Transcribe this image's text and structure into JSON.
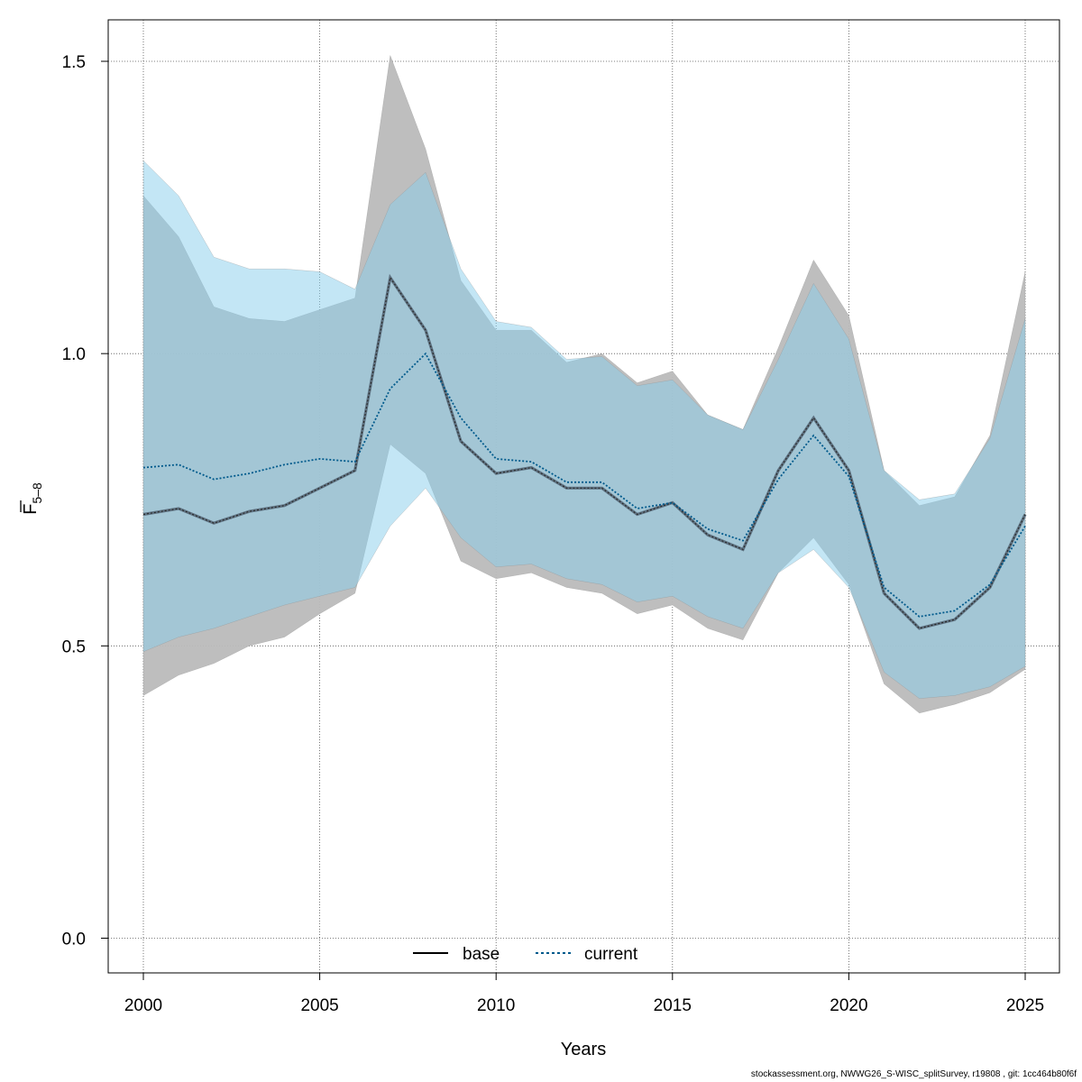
{
  "footer_text": "stockassessment.org, NWWG26_S-WISC_splitSurvey, r19808 , git: 1cc464b80f6f",
  "chart_data": {
    "type": "line",
    "xlabel": "Years",
    "ylabel_main": "F",
    "ylabel_sub": "5–8",
    "xlim": [
      1999,
      2026
    ],
    "ylim": [
      -0.06,
      1.58
    ],
    "grid": true,
    "legend_position": "bottom",
    "x_ticks": [
      2000,
      2005,
      2010,
      2015,
      2020,
      2025
    ],
    "y_ticks": [
      0.0,
      0.5,
      1.0,
      1.5
    ],
    "y_tick_labels": [
      "0.0",
      "0.5",
      "1.0",
      "1.5"
    ],
    "x": [
      2000,
      2001,
      2002,
      2003,
      2004,
      2005,
      2006,
      2007,
      2008,
      2009,
      2010,
      2011,
      2012,
      2013,
      2014,
      2015,
      2016,
      2017,
      2018,
      2019,
      2020,
      2021,
      2022,
      2023,
      2024,
      2025
    ],
    "series": [
      {
        "name": "base",
        "color": "#000000",
        "dash": "solid",
        "band_color": "#bbbbbb",
        "values": [
          0.725,
          0.735,
          0.71,
          0.73,
          0.74,
          0.77,
          0.8,
          1.13,
          1.04,
          0.85,
          0.795,
          0.805,
          0.77,
          0.77,
          0.725,
          0.745,
          0.69,
          0.665,
          0.8,
          0.89,
          0.8,
          0.59,
          0.53,
          0.545,
          0.6,
          0.725
        ],
        "lower": [
          0.415,
          0.45,
          0.47,
          0.5,
          0.515,
          0.555,
          0.59,
          0.845,
          0.795,
          0.645,
          0.615,
          0.625,
          0.6,
          0.59,
          0.555,
          0.57,
          0.53,
          0.51,
          0.625,
          0.685,
          0.605,
          0.435,
          0.385,
          0.4,
          0.42,
          0.46
        ],
        "upper": [
          1.27,
          1.2,
          1.08,
          1.06,
          1.055,
          1.075,
          1.095,
          1.51,
          1.35,
          1.125,
          1.04,
          1.04,
          0.985,
          1.0,
          0.95,
          0.97,
          0.895,
          0.87,
          1.01,
          1.16,
          1.065,
          0.8,
          0.74,
          0.755,
          0.86,
          1.14
        ]
      },
      {
        "name": "current",
        "color": "#005a8c",
        "dash": "dotted",
        "band_color": "#87ceeb",
        "values": [
          0.805,
          0.81,
          0.785,
          0.795,
          0.81,
          0.82,
          0.815,
          0.94,
          1.0,
          0.89,
          0.82,
          0.815,
          0.78,
          0.78,
          0.735,
          0.745,
          0.7,
          0.68,
          0.785,
          0.86,
          0.79,
          0.6,
          0.55,
          0.56,
          0.605,
          0.705
        ],
        "lower": [
          0.49,
          0.515,
          0.53,
          0.55,
          0.57,
          0.585,
          0.6,
          0.705,
          0.77,
          0.685,
          0.635,
          0.64,
          0.615,
          0.605,
          0.575,
          0.585,
          0.55,
          0.53,
          0.625,
          0.665,
          0.6,
          0.455,
          0.41,
          0.415,
          0.43,
          0.465
        ],
        "upper": [
          1.33,
          1.27,
          1.165,
          1.145,
          1.145,
          1.14,
          1.11,
          1.255,
          1.31,
          1.145,
          1.055,
          1.045,
          0.99,
          0.995,
          0.945,
          0.955,
          0.895,
          0.87,
          0.99,
          1.12,
          1.025,
          0.8,
          0.75,
          0.76,
          0.855,
          1.06
        ]
      }
    ]
  }
}
